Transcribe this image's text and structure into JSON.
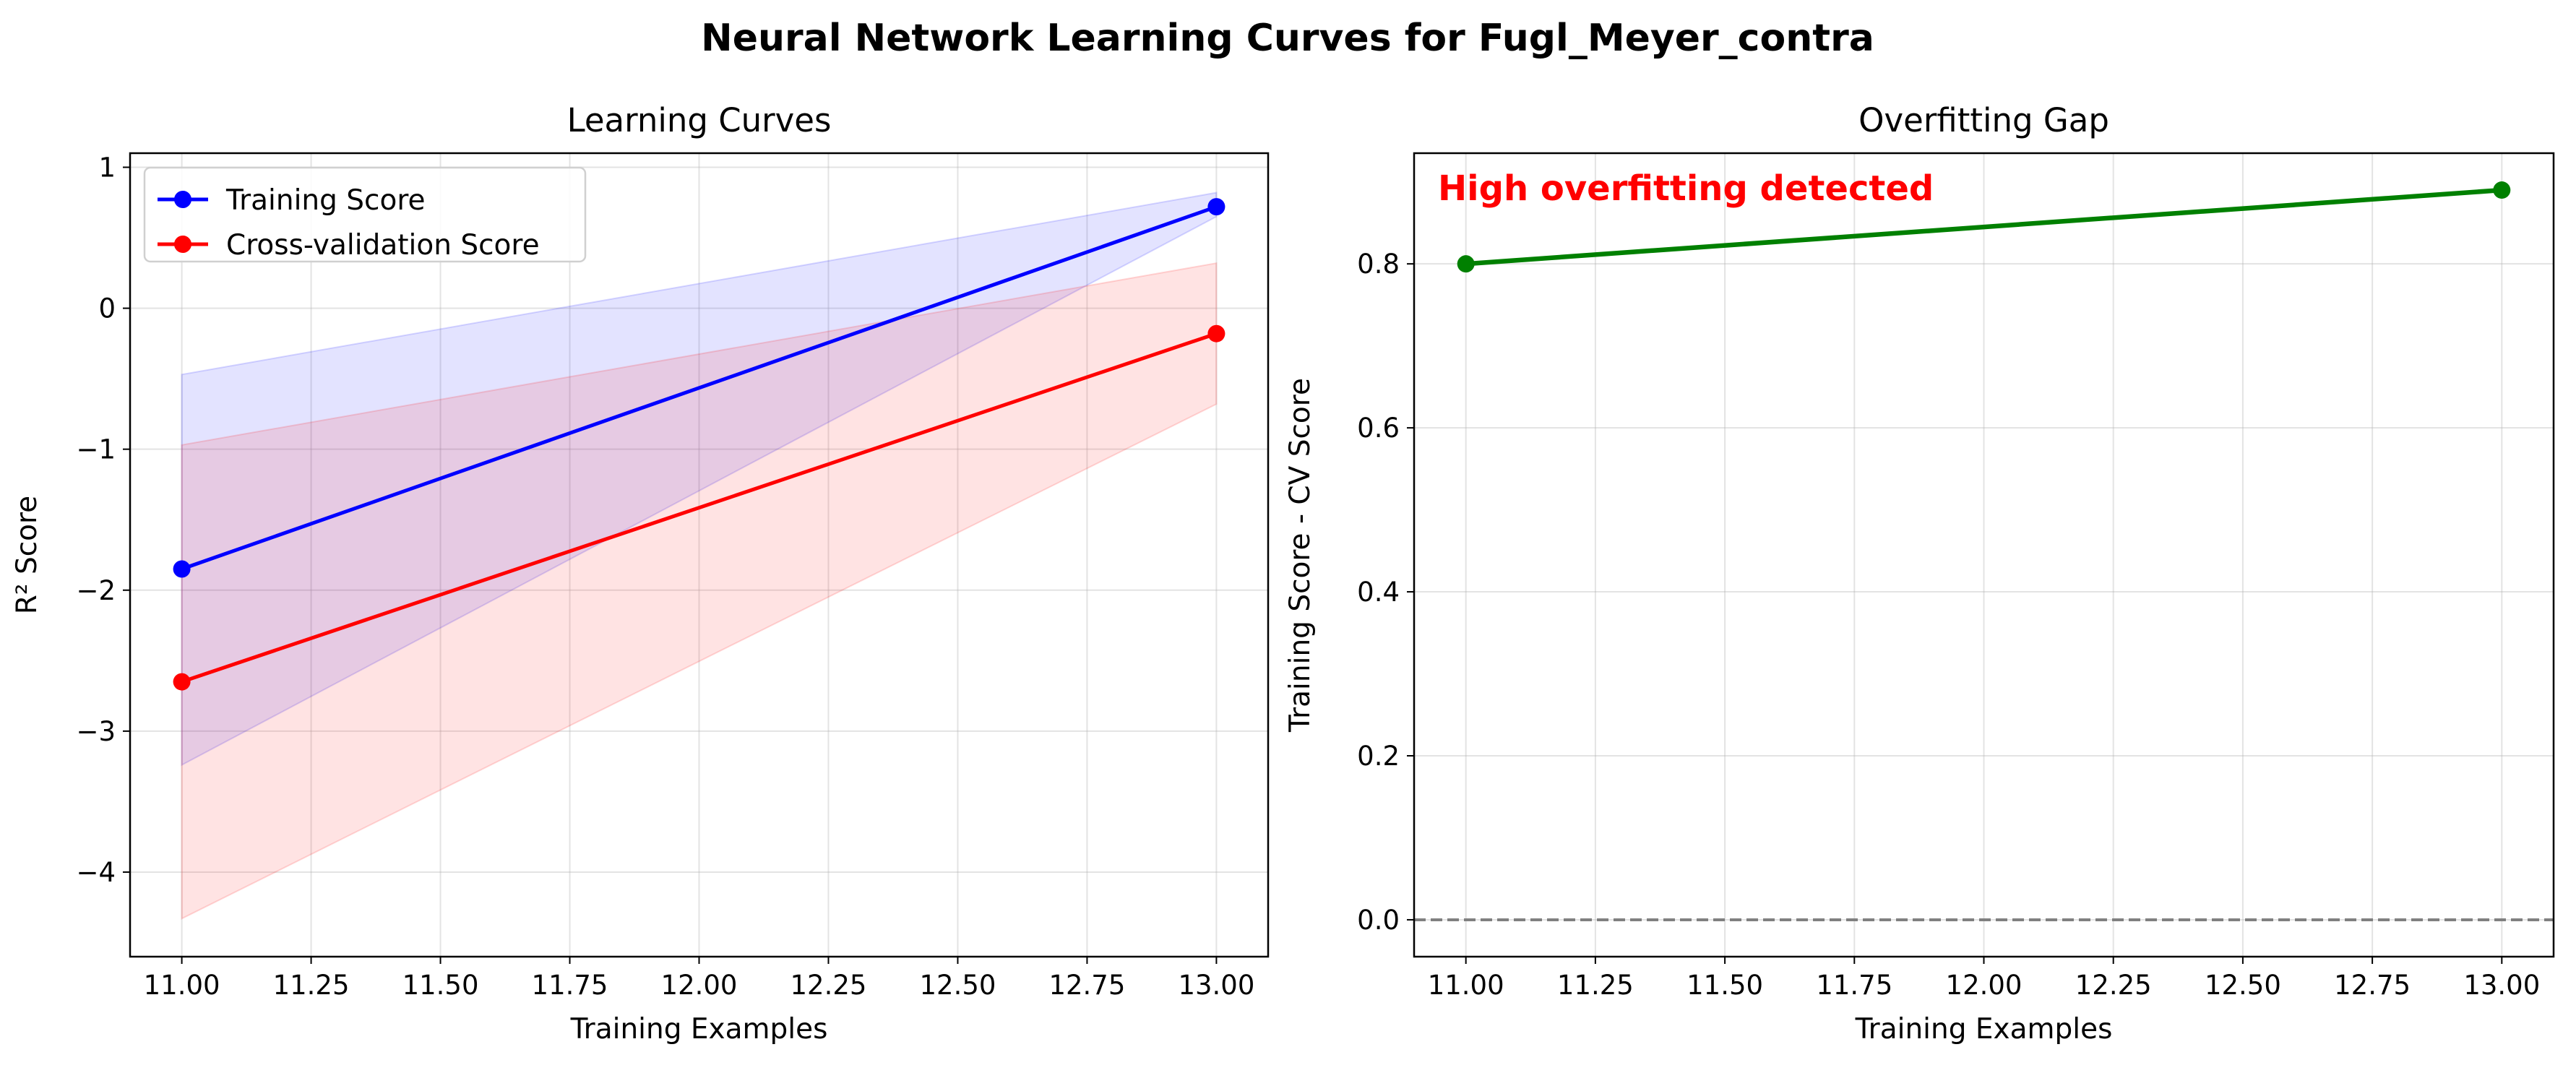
{
  "suptitle": "Neural Network Learning Curves for Fugl_Meyer_contra",
  "colors": {
    "training": "#0000ff",
    "cv": "#ff0000",
    "gap": "#008000",
    "training_band": "#0000ff",
    "cv_band": "#ff0000",
    "zero_line": "#808080",
    "annotation": "#ff0000",
    "grid": "#b0b0b0"
  },
  "chart_data": [
    {
      "type": "line",
      "title": "Learning Curves",
      "xlabel": "Training Examples",
      "ylabel": "R² Score",
      "xlim": [
        10.9,
        13.1
      ],
      "ylim": [
        -4.6,
        1.1
      ],
      "xticks": [
        11.0,
        11.25,
        11.5,
        11.75,
        12.0,
        12.25,
        12.5,
        12.75,
        13.0
      ],
      "xtick_labels": [
        "11.00",
        "11.25",
        "11.50",
        "11.75",
        "12.00",
        "12.25",
        "12.50",
        "12.75",
        "13.00"
      ],
      "yticks": [
        -4,
        -3,
        -2,
        -1,
        0,
        1
      ],
      "ytick_labels": [
        "−4",
        "−3",
        "−2",
        "−1",
        "0",
        "1"
      ],
      "grid": true,
      "legend": "upper left",
      "x": [
        11,
        13
      ],
      "series": [
        {
          "name": "Training Score",
          "values": [
            -1.85,
            0.72
          ],
          "band_lower": [
            -3.24,
            0.65
          ],
          "band_upper": [
            -0.47,
            0.82
          ],
          "color_key": "training"
        },
        {
          "name": "Cross-validation Score",
          "values": [
            -2.65,
            -0.18
          ],
          "band_lower": [
            -4.33,
            -0.68
          ],
          "band_upper": [
            -0.97,
            0.32
          ],
          "color_key": "cv"
        }
      ]
    },
    {
      "type": "line",
      "title": "Overfitting Gap",
      "xlabel": "Training Examples",
      "ylabel": "Training Score - CV Score",
      "xlim": [
        10.9,
        13.1
      ],
      "ylim": [
        -0.045,
        0.935
      ],
      "xticks": [
        11.0,
        11.25,
        11.5,
        11.75,
        12.0,
        12.25,
        12.5,
        12.75,
        13.0
      ],
      "xtick_labels": [
        "11.00",
        "11.25",
        "11.50",
        "11.75",
        "12.00",
        "12.25",
        "12.50",
        "12.75",
        "13.00"
      ],
      "yticks": [
        0.0,
        0.2,
        0.4,
        0.6,
        0.8
      ],
      "ytick_labels": [
        "0.0",
        "0.2",
        "0.4",
        "0.6",
        "0.8"
      ],
      "grid": true,
      "x": [
        11,
        13
      ],
      "series": [
        {
          "values": [
            0.8,
            0.89
          ],
          "color_key": "gap"
        }
      ],
      "reference_line": {
        "y": 0,
        "style": "dashed"
      },
      "annotation": "High overfitting detected"
    }
  ]
}
